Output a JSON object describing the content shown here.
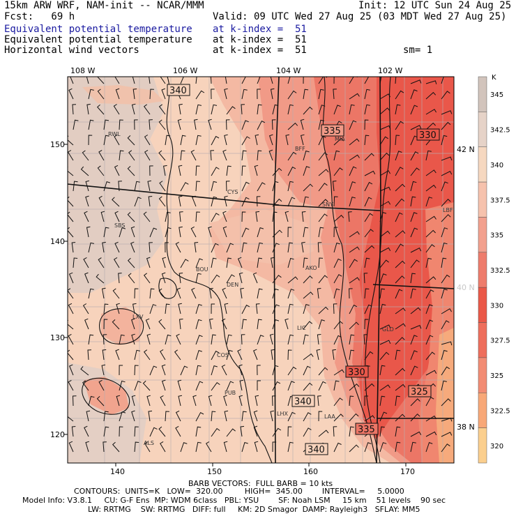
{
  "header": {
    "model": "15km ARW WRF, NAM-init -- NCAR/MMM",
    "init": "Init: 12 UTC Sun 24 Aug 25",
    "fcst": "Fcst:   69 h",
    "valid": "Valid: 09 UTC Wed 27 Aug 25 (03 MDT Wed 27 Aug 25)",
    "fields": [
      {
        "name": "Equivalent potential temperature",
        "level": "at k-index =  51",
        "color": "#1a1aa0"
      },
      {
        "name": "Equivalent potential temperature",
        "level": "at k-index =  51",
        "color": "#000000"
      },
      {
        "name": "Horizontal wind vectors",
        "level": "at k-index =  51",
        "color": "#000000"
      }
    ],
    "smoothing": "sm= 1"
  },
  "map": {
    "lon_labels": [
      "108 W",
      "106 W",
      "104 W",
      "102 W"
    ],
    "lat_labels_right": [
      "42 N",
      "40 N",
      "38 N"
    ],
    "x_ticks": [
      "140",
      "150",
      "160",
      "170"
    ],
    "y_ticks": [
      "150",
      "140",
      "130",
      "120"
    ],
    "stations": [
      "RWL",
      "BFF",
      "MIA",
      "CYS",
      "SNY",
      "LBF",
      "SBS",
      "BOU",
      "DEN",
      "AKO",
      "LXV",
      "LIC",
      "GLD",
      "COS",
      "PUB",
      "LHX",
      "LAA",
      "ALS"
    ],
    "contour_labels": [
      "340",
      "335",
      "330",
      "330",
      "325",
      "340",
      "335",
      "340"
    ],
    "colors": {
      "hot": "#e8463c",
      "warm": "#f08070",
      "mid": "#f6b09a",
      "cool": "#f8cdb2",
      "gray": "#dcc8bc",
      "orange": "#f9c48c"
    }
  },
  "colorbar": {
    "unit": "K",
    "labels": [
      "345",
      "342.5",
      "340",
      "337.5",
      "335",
      "332.5",
      "330",
      "327.5",
      "325",
      "322.5",
      "320"
    ],
    "colors": [
      "#d2c4bc",
      "#e6d3c8",
      "#f6d8c0",
      "#f6c2ad",
      "#f2a08e",
      "#ee7c6c",
      "#ea5848",
      "#ee6e5c",
      "#f28c74",
      "#f8a878",
      "#fbcf8e"
    ]
  },
  "footer": {
    "line1": "BARB VECTORS:  FULL BARB = 10 kts",
    "line2": "CONTOURS:  UNITS=K   LOW=  320.00         HIGH=  345.00        INTERVAL=     5.0000",
    "line3": "Model Info: V3.8.1     CU: G-F Ens  MP: WDM 6class   PBL: YSU        SF: Noah LSM     15 km    51 levels    90 sec",
    "line4": "LW: RRTMG    SW: RRTMG   DIFF: full     KM: 2D Smagor  DAMP: Rayleigh3   SFLAY: MM5"
  }
}
